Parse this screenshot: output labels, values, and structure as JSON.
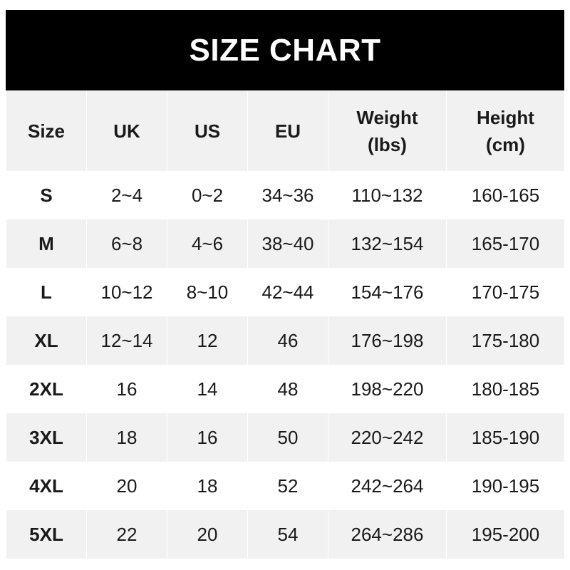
{
  "title": "SIZE CHART",
  "headers": [
    {
      "line1": "Size",
      "line2": ""
    },
    {
      "line1": "UK",
      "line2": ""
    },
    {
      "line1": "US",
      "line2": ""
    },
    {
      "line1": "EU",
      "line2": ""
    },
    {
      "line1": "Weight",
      "line2": "(lbs)"
    },
    {
      "line1": "Height",
      "line2": "(cm)"
    }
  ],
  "rows": [
    [
      "S",
      "2~4",
      "0~2",
      "34~36",
      "110~132",
      "160-165"
    ],
    [
      "M",
      "6~8",
      "4~6",
      "38~40",
      "132~154",
      "165-170"
    ],
    [
      "L",
      "10~12",
      "8~10",
      "42~44",
      "154~176",
      "170-175"
    ],
    [
      "XL",
      "12~14",
      "12",
      "46",
      "176~198",
      "175-180"
    ],
    [
      "2XL",
      "16",
      "14",
      "48",
      "198~220",
      "180-185"
    ],
    [
      "3XL",
      "18",
      "16",
      "50",
      "220~242",
      "185-190"
    ],
    [
      "4XL",
      "20",
      "18",
      "52",
      "242~264",
      "190-195"
    ],
    [
      "5XL",
      "22",
      "20",
      "54",
      "264~286",
      "195-200"
    ]
  ],
  "colors": {
    "title_bg": "#000000",
    "title_text": "#ffffff",
    "stripe": "#f1f1f1"
  }
}
